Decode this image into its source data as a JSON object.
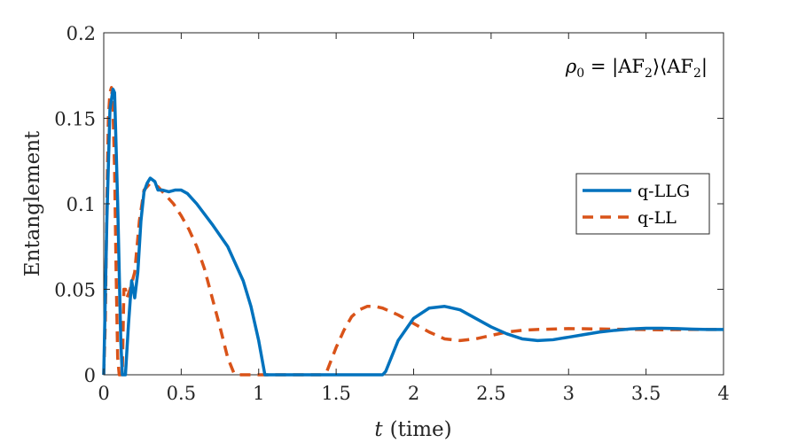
{
  "chart_data": {
    "type": "line",
    "title": "",
    "xlabel_symbol": "t",
    "xlabel_text": "(time)",
    "ylabel": "Entanglement",
    "xlim": [
      0,
      4
    ],
    "ylim": [
      0,
      0.2
    ],
    "xticks": [
      0,
      0.5,
      1,
      1.5,
      2,
      2.5,
      3,
      3.5,
      4
    ],
    "xtick_labels": [
      "0",
      "0.5",
      "1",
      "1.5",
      "2",
      "2.5",
      "3",
      "3.5",
      "4"
    ],
    "yticks": [
      0,
      0.05,
      0.1,
      0.15,
      0.2
    ],
    "ytick_labels": [
      "0",
      "0.05",
      "0.1",
      "0.15",
      "0.2"
    ],
    "grid": false,
    "legend_position": "right",
    "annotation": {
      "rho": "ρ",
      "sub": "0",
      "eq": " = |AF",
      "sub2": "2",
      "mid": "⟩⟨AF",
      "sub3": "2",
      "end": "|"
    },
    "series": [
      {
        "name": "q-LLG",
        "color": "#0072BD",
        "style": "solid",
        "x": [
          0,
          0.02,
          0.04,
          0.06,
          0.07,
          0.09,
          0.11,
          0.12,
          0.13,
          0.14,
          0.16,
          0.18,
          0.2,
          0.22,
          0.24,
          0.26,
          0.28,
          0.3,
          0.33,
          0.35,
          0.38,
          0.42,
          0.46,
          0.5,
          0.54,
          0.6,
          0.7,
          0.8,
          0.9,
          0.95,
          1.0,
          1.04,
          1.2,
          1.4,
          1.6,
          1.8,
          1.82,
          1.9,
          2.0,
          2.1,
          2.2,
          2.3,
          2.4,
          2.5,
          2.6,
          2.7,
          2.8,
          2.9,
          3.0,
          3.1,
          3.2,
          3.3,
          3.4,
          3.5,
          3.6,
          3.7,
          3.8,
          3.9,
          4.0
        ],
        "y": [
          0,
          0.09,
          0.155,
          0.167,
          0.165,
          0.1,
          0.02,
          0,
          0,
          0,
          0.03,
          0.055,
          0.045,
          0.06,
          0.09,
          0.107,
          0.112,
          0.115,
          0.113,
          0.108,
          0.108,
          0.107,
          0.108,
          0.108,
          0.106,
          0.1,
          0.088,
          0.075,
          0.055,
          0.04,
          0.02,
          0,
          0,
          0,
          0,
          0,
          0.002,
          0.02,
          0.033,
          0.039,
          0.04,
          0.038,
          0.033,
          0.028,
          0.024,
          0.021,
          0.02,
          0.0205,
          0.022,
          0.0235,
          0.025,
          0.026,
          0.0268,
          0.0272,
          0.0272,
          0.027,
          0.0267,
          0.0265,
          0.0265
        ]
      },
      {
        "name": "q-LL",
        "color": "#D95319",
        "style": "dashed",
        "x": [
          0,
          0.01,
          0.02,
          0.03,
          0.04,
          0.05,
          0.06,
          0.07,
          0.08,
          0.09,
          0.1,
          0.11,
          0.12,
          0.13,
          0.14,
          0.15,
          0.17,
          0.2,
          0.23,
          0.26,
          0.3,
          0.35,
          0.4,
          0.45,
          0.5,
          0.55,
          0.6,
          0.65,
          0.7,
          0.75,
          0.8,
          0.84,
          0.86,
          0.9,
          1.0,
          1.2,
          1.4,
          1.44,
          1.5,
          1.55,
          1.6,
          1.65,
          1.7,
          1.75,
          1.8,
          1.9,
          2.0,
          2.1,
          2.2,
          2.3,
          2.4,
          2.5,
          2.6,
          2.7,
          2.8,
          3.0,
          3.2,
          3.4,
          3.6,
          3.8,
          4.0
        ],
        "y": [
          0,
          0.03,
          0.1,
          0.15,
          0.165,
          0.168,
          0.155,
          0.12,
          0.06,
          0.01,
          0,
          0,
          0.002,
          0.05,
          0.05,
          0.045,
          0.05,
          0.06,
          0.09,
          0.108,
          0.112,
          0.11,
          0.105,
          0.1,
          0.093,
          0.085,
          0.075,
          0.062,
          0.045,
          0.028,
          0.01,
          0.001,
          0,
          0,
          0,
          0,
          0,
          0.002,
          0.016,
          0.026,
          0.034,
          0.038,
          0.04,
          0.04,
          0.039,
          0.035,
          0.03,
          0.025,
          0.021,
          0.02,
          0.021,
          0.023,
          0.025,
          0.026,
          0.0265,
          0.027,
          0.0268,
          0.0265,
          0.0263,
          0.0265,
          0.0265
        ]
      }
    ]
  }
}
